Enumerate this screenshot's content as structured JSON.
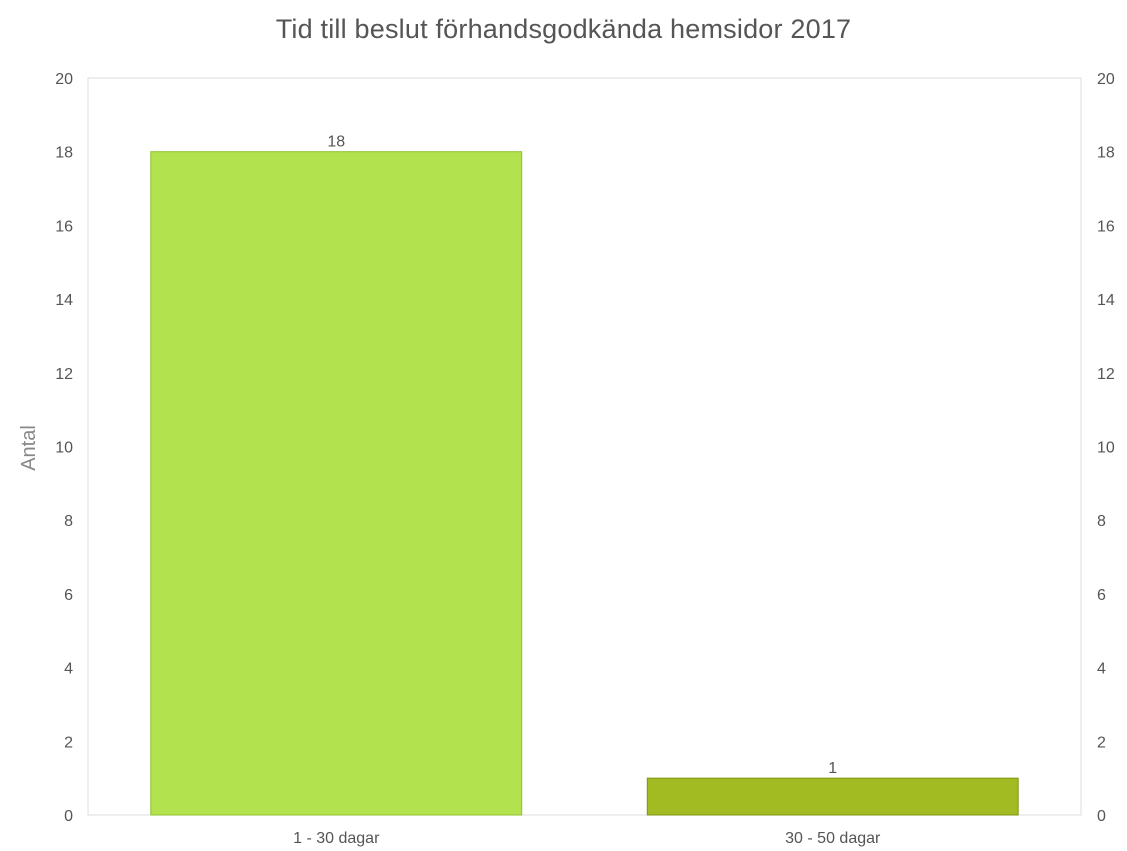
{
  "chart_data": {
    "type": "bar",
    "title": "Tid till beslut förhandsgodkända hemsidor 2017",
    "xlabel": "",
    "ylabel": "Antal",
    "categories": [
      "1 - 30 dagar",
      "30 - 50 dagar"
    ],
    "values": [
      18,
      1
    ],
    "data_labels": [
      "18",
      "1"
    ],
    "bar_colors": [
      "#b2e34f",
      "#a2bb22"
    ],
    "bar_stroke_colors": [
      "#8fbf2c",
      "#7f9514"
    ],
    "ylim": [
      0,
      20
    ],
    "yticks": [
      "0",
      "2",
      "4",
      "6",
      "8",
      "10",
      "12",
      "14",
      "16",
      "18",
      "20"
    ],
    "secondary_yticks": [
      "0",
      "2",
      "4",
      "6",
      "8",
      "10",
      "12",
      "14",
      "16",
      "18",
      "20"
    ],
    "grid": false,
    "legend": "none"
  },
  "colors": {
    "text": "#555555",
    "axis_title": "#888888",
    "frame": "#dddddd"
  }
}
